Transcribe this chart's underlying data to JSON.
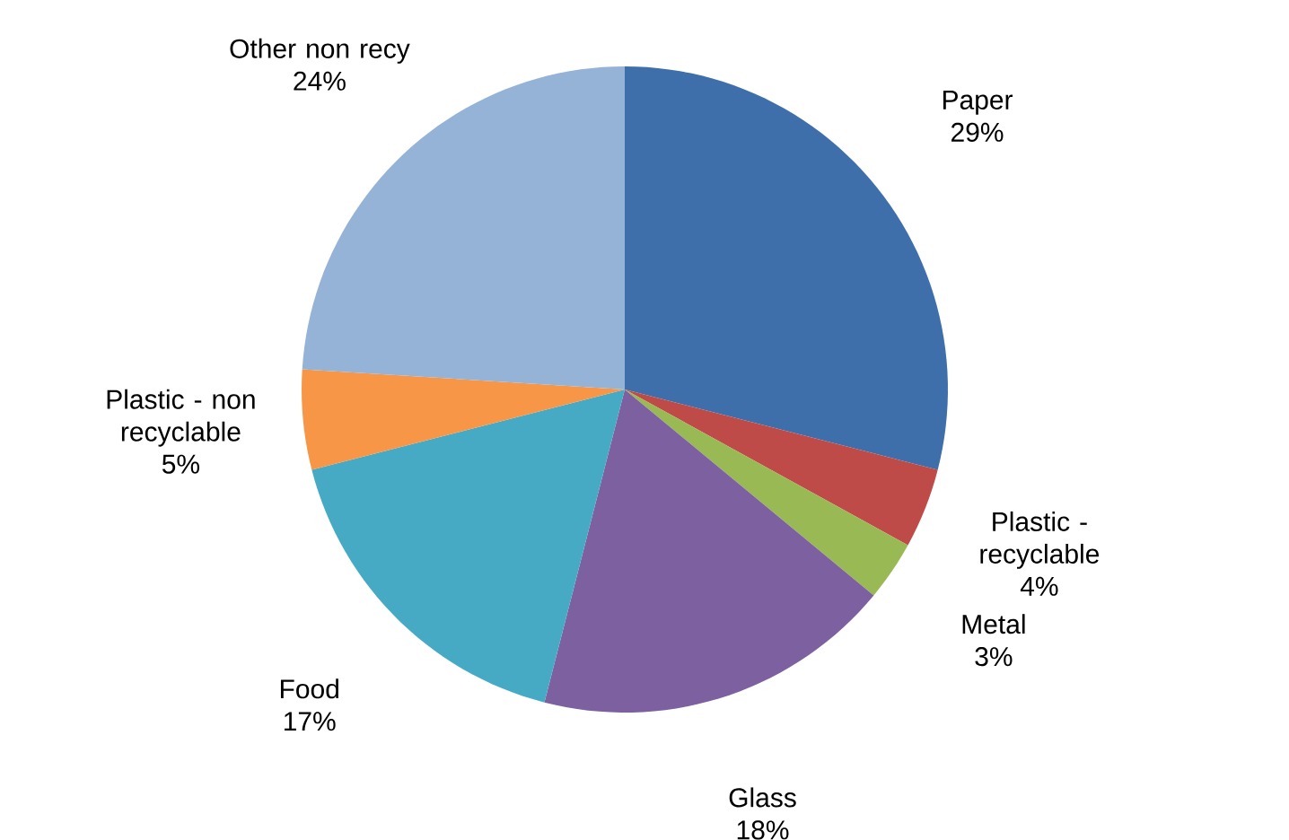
{
  "chart_data": {
    "type": "pie",
    "categories": [
      "Paper",
      "Plastic - recyclable",
      "Metal",
      "Glass",
      "Food",
      "Plastic - non recyclable",
      "Other non recy"
    ],
    "values": [
      29,
      4,
      3,
      18,
      17,
      5,
      24
    ],
    "value_labels": [
      "29%",
      "4%",
      "3%",
      "18%",
      "17%",
      "5%",
      "24%"
    ],
    "colors": [
      "#3f6faa",
      "#be4b48",
      "#98b954",
      "#7d60a0",
      "#46aac5",
      "#f79646",
      "#94b3d6"
    ]
  }
}
